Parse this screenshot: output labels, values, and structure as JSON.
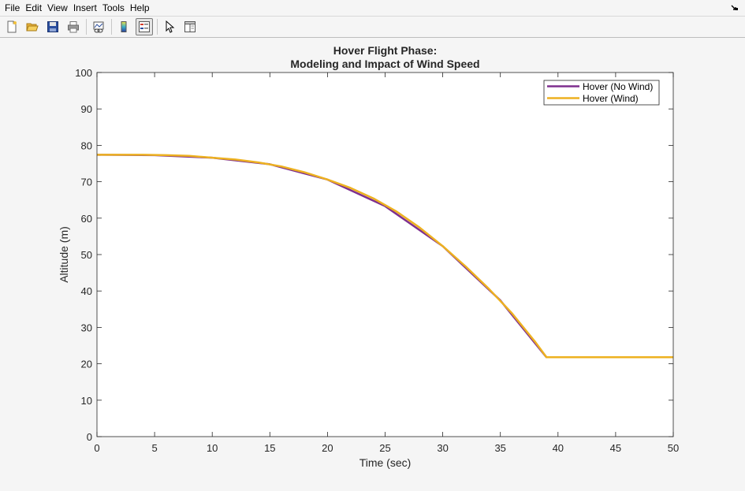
{
  "menu": {
    "items": [
      "File",
      "Edit",
      "View",
      "Insert",
      "Tools",
      "Help"
    ]
  },
  "toolbar": {
    "buttons": [
      {
        "icon": "new-figure-icon"
      },
      {
        "icon": "open-file-icon"
      },
      {
        "icon": "save-icon"
      },
      {
        "icon": "print-icon"
      },
      {
        "icon": "link-plot-icon"
      },
      {
        "icon": "colorbar-icon"
      },
      {
        "icon": "legend-icon",
        "pressed": true
      },
      {
        "icon": "edit-plot-arrow-icon"
      },
      {
        "icon": "property-editor-icon"
      }
    ]
  },
  "chart_data": {
    "type": "line",
    "title": [
      "Hover Flight Phase:",
      "Modeling and Impact of Wind Speed"
    ],
    "xlabel": "Time (sec)",
    "ylabel": "Altitude (m)",
    "xlim": [
      0,
      50
    ],
    "ylim": [
      0,
      100
    ],
    "xticks": [
      0,
      5,
      10,
      15,
      20,
      25,
      30,
      35,
      40,
      45,
      50
    ],
    "yticks": [
      0,
      10,
      20,
      30,
      40,
      50,
      60,
      70,
      80,
      90,
      100
    ],
    "grid": false,
    "legend_position": "top-right",
    "series": [
      {
        "name": "Hover (No Wind)",
        "color": "#7e2f8e",
        "x": [
          0,
          5,
          10,
          15,
          20,
          25,
          30,
          35,
          39,
          40,
          45,
          50
        ],
        "y": [
          77.4,
          77.3,
          76.6,
          74.8,
          70.6,
          63.3,
          52.3,
          37.4,
          21.8,
          21.8,
          21.8,
          21.8
        ]
      },
      {
        "name": "Hover (Wind)",
        "color": "#edb120",
        "x": [
          0,
          2,
          4,
          6,
          8,
          10,
          12,
          14,
          16,
          18,
          20,
          22,
          24,
          26,
          28,
          30,
          32,
          34,
          36,
          38,
          39,
          40,
          45,
          50
        ],
        "y": [
          77.4,
          77.4,
          77.4,
          77.3,
          77.1,
          76.6,
          76.1,
          75.3,
          74.2,
          72.6,
          70.6,
          68.3,
          65.4,
          61.8,
          57.4,
          52.3,
          46.7,
          40.6,
          33.9,
          26.1,
          21.8,
          21.8,
          21.8,
          21.8
        ]
      }
    ]
  }
}
